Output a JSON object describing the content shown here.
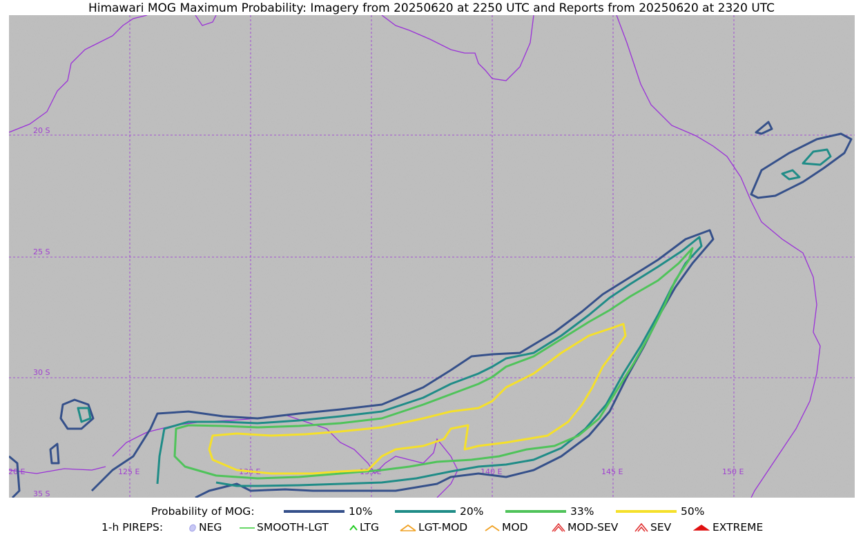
{
  "title": "Himawari MOG Maximum Probability: Imagery from 20250620 at 2250 UTC and Reports from 20250620 at 2320 UTC",
  "map": {
    "lat_labels": [
      "20 S",
      "25 S",
      "30 S",
      "35 S"
    ],
    "lon_labels": [
      "120 E",
      "125 E",
      "130 E",
      "135 E",
      "140 E",
      "145 E",
      "150 E"
    ],
    "colors": {
      "coast": "#9a30d8",
      "grid": "#9a30d8",
      "contour_10": "#35508a",
      "contour_20": "#1f8c87",
      "contour_33": "#4fc35a",
      "contour_50": "#f5e02a"
    }
  },
  "legend_probability": {
    "label": "Probability of MOG:",
    "items": [
      {
        "label": "10%",
        "color": "#35508a"
      },
      {
        "label": "20%",
        "color": "#1f8c87"
      },
      {
        "label": "33%",
        "color": "#4fc35a"
      },
      {
        "label": "50%",
        "color": "#f5e02a"
      }
    ]
  },
  "legend_pireps": {
    "label": "1-h PIREPS:",
    "items": [
      {
        "label": "NEG",
        "icon": "neg-icon",
        "color": "#b0b0f0"
      },
      {
        "label": "SMOOTH-LGT",
        "icon": "smooth-lgt-icon",
        "color": "#33cc33"
      },
      {
        "label": "LTG",
        "icon": "ltg-icon",
        "color": "#22cc22"
      },
      {
        "label": "LGT-MOD",
        "icon": "lgt-mod-icon",
        "color": "#f0a020"
      },
      {
        "label": "MOD",
        "icon": "mod-icon",
        "color": "#f0a020"
      },
      {
        "label": "MOD-SEV",
        "icon": "mod-sev-icon",
        "color": "#e03030"
      },
      {
        "label": "SEV",
        "icon": "sev-icon",
        "color": "#e03030"
      },
      {
        "label": "EXTREME",
        "icon": "extreme-icon",
        "color": "#e01010"
      }
    ]
  }
}
